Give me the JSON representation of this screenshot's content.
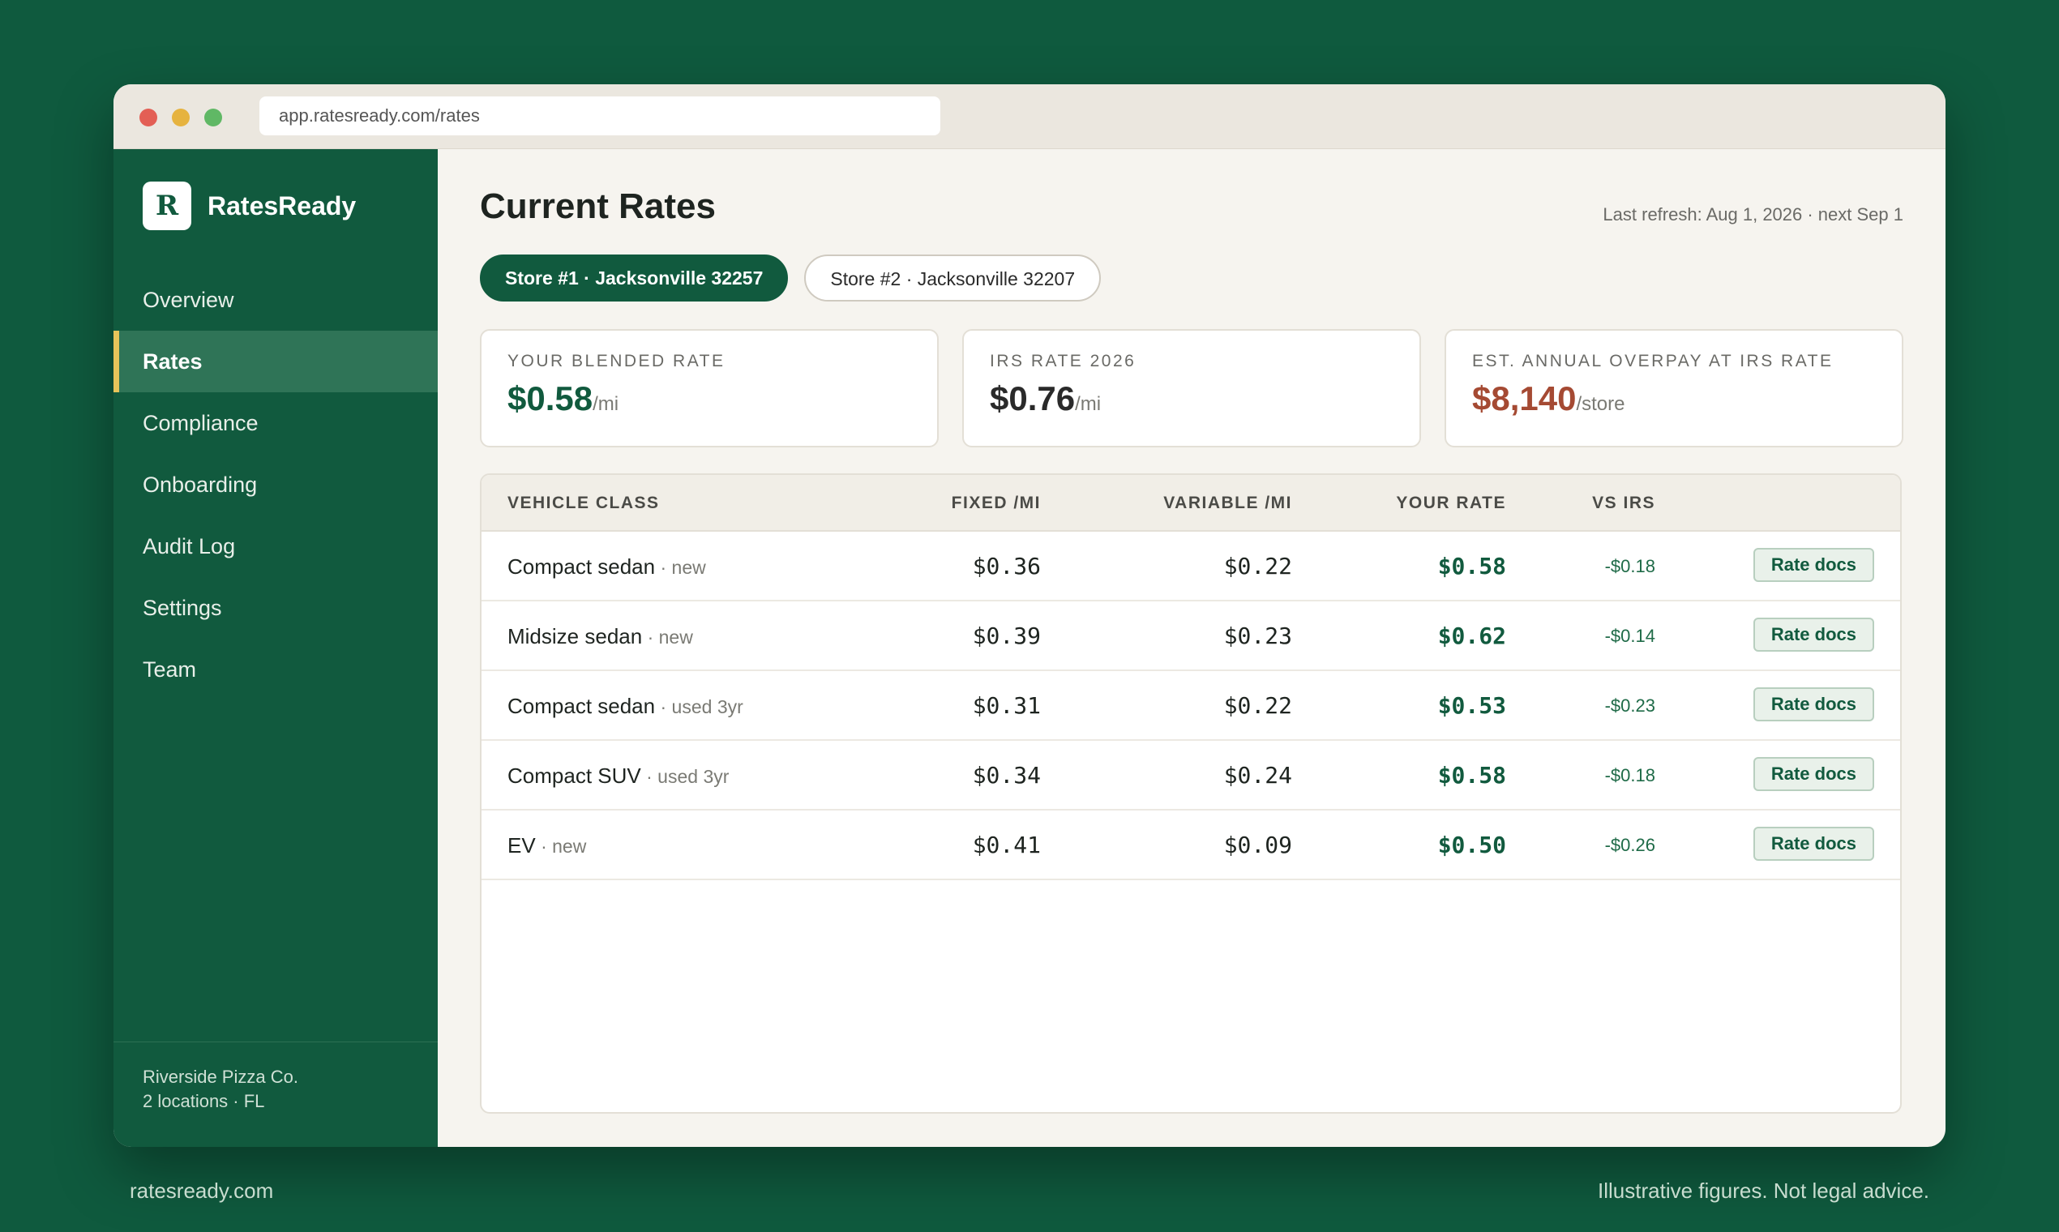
{
  "browser": {
    "url": "app.ratesready.com/rates"
  },
  "sidebar": {
    "logo_letter": "R",
    "brand": "RatesReady",
    "items": [
      {
        "label": "Overview",
        "active": false
      },
      {
        "label": "Rates",
        "active": true
      },
      {
        "label": "Compliance",
        "active": false
      },
      {
        "label": "Onboarding",
        "active": false
      },
      {
        "label": "Audit Log",
        "active": false
      },
      {
        "label": "Settings",
        "active": false
      },
      {
        "label": "Team",
        "active": false
      }
    ],
    "footer": {
      "company": "Riverside Pizza Co.",
      "locations": "2 locations · FL"
    }
  },
  "header": {
    "title": "Current Rates",
    "refresh": "Last refresh: Aug 1, 2026 · next Sep 1"
  },
  "stores": [
    {
      "label": "Store #1 · Jacksonville 32257",
      "active": true
    },
    {
      "label": "Store #2 · Jacksonville 32207",
      "active": false
    }
  ],
  "cards": [
    {
      "label": "YOUR BLENDED RATE",
      "value": "$0.58",
      "unit": "/mi"
    },
    {
      "label": "IRS RATE 2026",
      "value": "$0.76",
      "unit": "/mi"
    },
    {
      "label": "EST. ANNUAL OVERPAY AT IRS RATE",
      "value": "$8,140",
      "unit": "/store"
    }
  ],
  "table": {
    "headers": {
      "vehicle_class": "VEHICLE CLASS",
      "fixed": "FIXED /MI",
      "variable": "VARIABLE /MI",
      "your_rate": "YOUR RATE",
      "vs_irs": "VS IRS"
    },
    "rows": [
      {
        "vehicle": "Compact sedan",
        "sub": " · new",
        "fixed": "$0.36",
        "variable": "$0.22",
        "rate": "$0.58",
        "vs": "-$0.18",
        "action": "Rate docs"
      },
      {
        "vehicle": "Midsize sedan",
        "sub": " · new",
        "fixed": "$0.39",
        "variable": "$0.23",
        "rate": "$0.62",
        "vs": "-$0.14",
        "action": "Rate docs"
      },
      {
        "vehicle": "Compact sedan",
        "sub": " · used 3yr",
        "fixed": "$0.31",
        "variable": "$0.22",
        "rate": "$0.53",
        "vs": "-$0.23",
        "action": "Rate docs"
      },
      {
        "vehicle": "Compact SUV",
        "sub": " · used 3yr",
        "fixed": "$0.34",
        "variable": "$0.24",
        "rate": "$0.58",
        "vs": "-$0.18",
        "action": "Rate docs"
      },
      {
        "vehicle": "EV",
        "sub": " · new",
        "fixed": "$0.41",
        "variable": "$0.09",
        "rate": "$0.50",
        "vs": "-$0.26",
        "action": "Rate docs"
      }
    ]
  },
  "footer": {
    "left": "ratesready.com",
    "right": "Illustrative figures. Not legal advice."
  }
}
